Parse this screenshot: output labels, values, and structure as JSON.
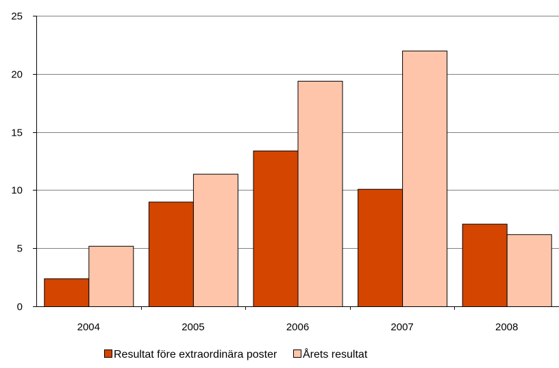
{
  "chart_data": {
    "type": "bar",
    "title": "",
    "xlabel": "",
    "ylabel": "",
    "categories": [
      "2004",
      "2005",
      "2006",
      "2007",
      "2008"
    ],
    "series": [
      {
        "name": "Resultat före extraordinära poster",
        "color": "#d44500",
        "values": [
          2.4,
          9.0,
          13.4,
          10.1,
          7.1
        ]
      },
      {
        "name": "Årets resultat",
        "color": "#ffc5aa",
        "values": [
          5.2,
          11.4,
          19.4,
          22.0,
          6.2
        ]
      }
    ],
    "ylim": [
      0,
      25
    ],
    "yticks": [
      "0",
      "5",
      "10",
      "15",
      "20",
      "25"
    ],
    "grid": true,
    "legend_position": "bottom"
  }
}
